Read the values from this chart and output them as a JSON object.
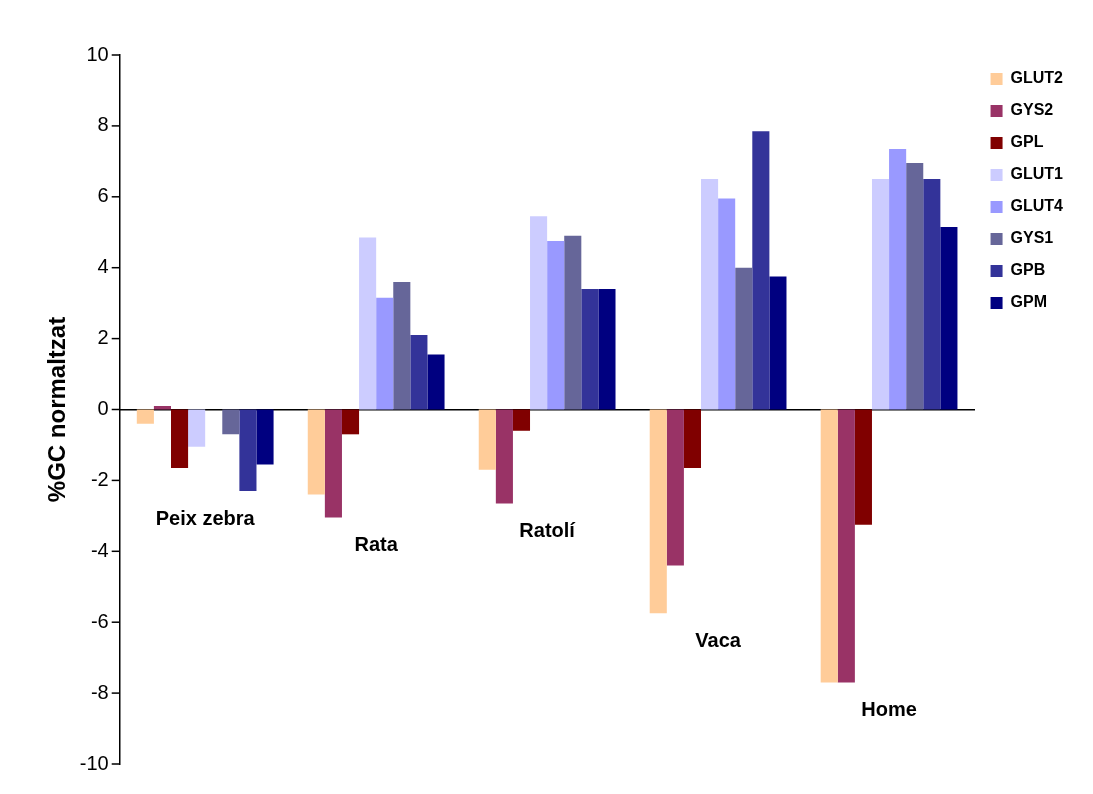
{
  "chart_data": {
    "type": "bar",
    "ylabel": "%GC normaltzat",
    "categories": [
      "Peix zebra",
      "Rata",
      "Ratolí",
      "Vaca",
      "Home"
    ],
    "series": [
      {
        "name": "GLUT2",
        "color": "#ffcc99",
        "values": [
          -0.4,
          -2.4,
          -1.7,
          -5.75,
          -7.7
        ]
      },
      {
        "name": "GYS2",
        "color": "#993366",
        "values": [
          0.1,
          -3.05,
          -2.65,
          -4.4,
          -7.7
        ]
      },
      {
        "name": "GPL",
        "color": "#800000",
        "values": [
          -1.65,
          -0.7,
          -0.6,
          -1.65,
          -3.25
        ]
      },
      {
        "name": "GLUT1",
        "color": "#ccccff",
        "values": [
          -1.05,
          4.85,
          5.45,
          6.5,
          6.5
        ]
      },
      {
        "name": "GLUT4",
        "color": "#9999ff",
        "values": [
          0,
          3.15,
          4.75,
          5.95,
          7.35
        ]
      },
      {
        "name": "GYS1",
        "color": "#666699",
        "values": [
          -0.7,
          3.6,
          4.9,
          4.0,
          6.95
        ]
      },
      {
        "name": "GPB",
        "color": "#333399",
        "values": [
          -2.3,
          2.1,
          3.4,
          7.85,
          6.5
        ]
      },
      {
        "name": "GPM",
        "color": "#000080",
        "values": [
          -1.55,
          1.55,
          3.4,
          3.75,
          5.15
        ]
      }
    ],
    "ylim": [
      -10,
      10
    ],
    "yticks": [
      -10,
      -8,
      -6,
      -4,
      -2,
      0,
      2,
      4,
      6,
      8,
      10
    ],
    "legend": "right"
  }
}
